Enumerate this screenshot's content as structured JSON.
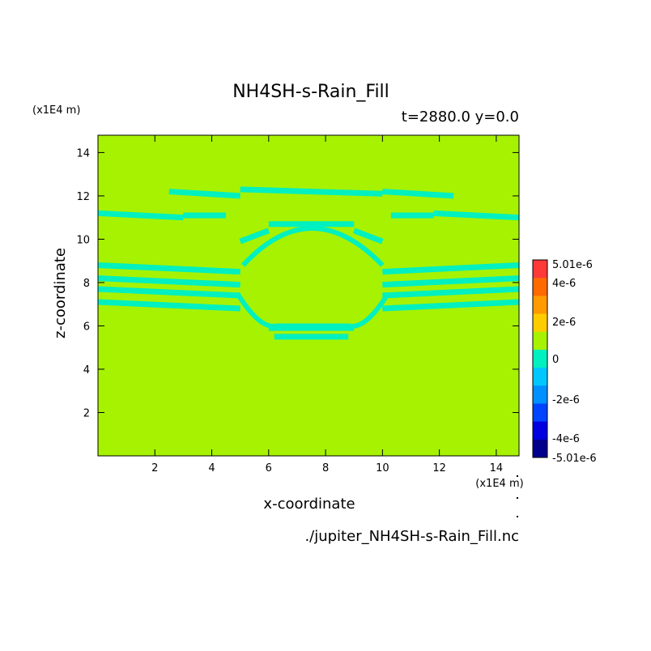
{
  "chart_data": {
    "type": "heatmap",
    "title": "NH4SH-s-Rain_Fill",
    "subtitle": "t=2880.0 y=0.0",
    "xlabel": "x-coordinate",
    "ylabel": "z-coordinate",
    "x_unit": "(x1E4 m)",
    "y_unit": "(x1E4 m)",
    "source_file": "./jupiter_NH4SH-s-Rain_Fill.nc",
    "xlim": [
      0,
      14.8
    ],
    "ylim": [
      0,
      14.8
    ],
    "x_ticks": [
      2,
      4,
      6,
      8,
      10,
      12,
      14
    ],
    "y_ticks": [
      2,
      4,
      6,
      8,
      10,
      12,
      14
    ],
    "background_level": "0",
    "colorbar": {
      "labels": [
        "5.01e-6",
        "4e-6",
        "2e-6",
        "0",
        "-2e-6",
        "-4e-6",
        "-5.01e-6"
      ],
      "colors_top_to_bottom": [
        "#ff3838",
        "#ff6a00",
        "#ff9a00",
        "#ffcc00",
        "#a6f200",
        "#00f0c0",
        "#00c8ff",
        "#0090ff",
        "#0044ff",
        "#0000e0",
        "#00008c"
      ]
    },
    "regions": [
      {
        "name": "upper-band",
        "level": "slightly negative",
        "color": "#00f0c0",
        "segments": [
          [
            0,
            11.2,
            3.0,
            11.0
          ],
          [
            3.0,
            11.1,
            4.5,
            11.1
          ],
          [
            10.3,
            11.1,
            11.8,
            11.1
          ],
          [
            11.8,
            11.2,
            14.8,
            11.0
          ]
        ]
      },
      {
        "name": "top-shelf",
        "level": "slightly negative",
        "color": "#00f0c0",
        "segments": [
          [
            2.5,
            12.2,
            5.0,
            12.0
          ],
          [
            5.0,
            12.3,
            10.0,
            12.1
          ],
          [
            10.0,
            12.2,
            12.5,
            12.0
          ]
        ]
      },
      {
        "name": "arch",
        "level": "slightly negative",
        "color": "#00f0c0",
        "segments": [
          [
            5.0,
            9.9,
            6.0,
            10.4
          ],
          [
            6.0,
            10.7,
            9.0,
            10.7
          ],
          [
            9.0,
            10.4,
            10.0,
            9.9
          ]
        ]
      },
      {
        "name": "left-layers",
        "level": "slightly negative",
        "color": "#00f0c0",
        "segments": [
          [
            0,
            8.8,
            5.0,
            8.5
          ],
          [
            0,
            8.2,
            5.0,
            7.9
          ],
          [
            0,
            7.7,
            5.0,
            7.4
          ],
          [
            0,
            7.1,
            5.0,
            6.8
          ]
        ]
      },
      {
        "name": "right-layers",
        "level": "slightly negative",
        "color": "#00f0c0",
        "segments": [
          [
            10.0,
            8.5,
            14.8,
            8.8
          ],
          [
            10.0,
            7.9,
            14.8,
            8.2
          ],
          [
            10.0,
            7.4,
            14.8,
            7.7
          ],
          [
            10.0,
            6.8,
            14.8,
            7.1
          ]
        ]
      },
      {
        "name": "lower-bowl",
        "level": "slightly negative",
        "color": "#00f0c0",
        "segments": [
          [
            6.0,
            5.9,
            9.0,
            5.9
          ],
          [
            6.2,
            5.5,
            8.8,
            5.5
          ]
        ]
      }
    ]
  }
}
